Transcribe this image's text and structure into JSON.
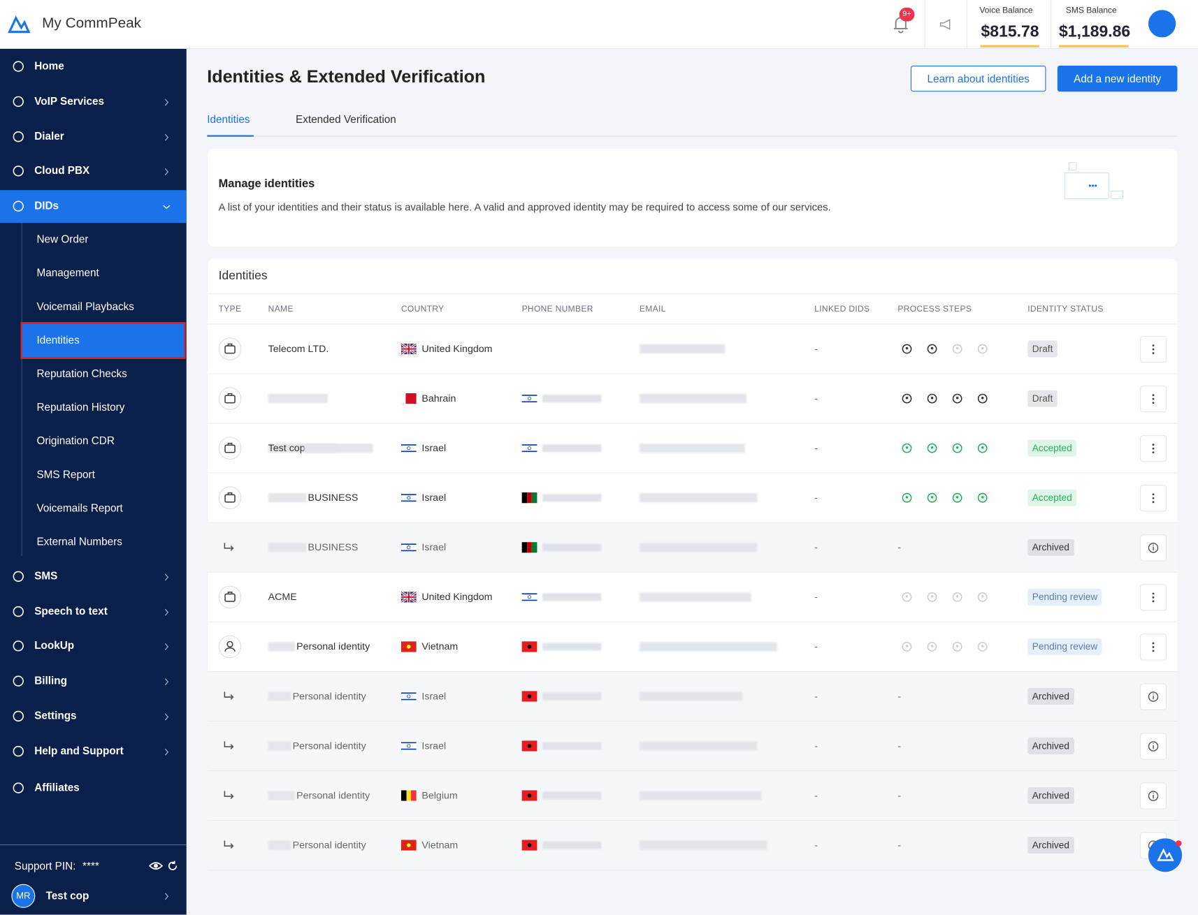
{
  "header": {
    "brand": "My CommPeak",
    "notification_badge": "9+",
    "voice_balance_label": "Voice Balance",
    "voice_balance": "$815.78",
    "sms_balance_label": "SMS Balance",
    "sms_balance": "$1,189.86"
  },
  "sidebar": {
    "items": [
      "Home",
      "VoIP Services",
      "Dialer",
      "Cloud PBX",
      "DIDs"
    ],
    "sub_items": [
      "New Order",
      "Management",
      "Voicemail Playbacks",
      "Identities",
      "Reputation Checks",
      "Reputation History",
      "Origination CDR",
      "SMS Report",
      "Voicemails Report",
      "External Numbers"
    ],
    "items_after": [
      "SMS",
      "Speech to text",
      "LookUp",
      "Billing",
      "Settings",
      "Help and Support",
      "Affiliates"
    ],
    "support_pin_label": "Support PIN:",
    "support_pin": "****",
    "user_initials": "MR",
    "user_name": "Test cop"
  },
  "page": {
    "title": "Identities & Extended Verification",
    "buttons": [
      "Learn about identities",
      "Add a new identity"
    ],
    "tabs": [
      "Identities",
      "Extended Verification"
    ],
    "card_title": "Manage identities",
    "card_text": "A list of your identities and their status is available here. A valid and approved identity may be required to access some of our services.",
    "table_title": "Identities"
  },
  "table": {
    "columns": [
      "TYPE",
      "NAME",
      "COUNTRY",
      "PHONE NUMBER",
      "EMAIL",
      "LINKED DIDS",
      "PROCESS STEPS",
      "IDENTITY STATUS"
    ],
    "rows": [
      {
        "name": "Telecom LTD.",
        "country": "United Kingdom",
        "linked": "-",
        "steps": null,
        "status": "Draft"
      },
      {
        "name": null,
        "country": "Bahrain",
        "linked": "-",
        "steps": null,
        "status": "Draft"
      },
      {
        "name": "Test cop",
        "country": "Israel",
        "linked": "-",
        "steps": null,
        "status": "Accepted"
      },
      {
        "name": "BUSINESS",
        "country": "Israel",
        "linked": "-",
        "steps": null,
        "status": "Accepted"
      },
      {
        "name": "BUSINESS",
        "country": "Israel",
        "linked": "-",
        "steps": "-",
        "status": "Archived"
      },
      {
        "name": "ACME",
        "country": "United Kingdom",
        "linked": "-",
        "steps": null,
        "status": "Pending review"
      },
      {
        "name": "Personal identity",
        "country": "Vietnam",
        "linked": "-",
        "steps": null,
        "status": "Pending review"
      },
      {
        "name": "Personal identity",
        "country": "Israel",
        "linked": "-",
        "steps": "-",
        "status": "Archived"
      },
      {
        "name": "Personal identity",
        "country": "Israel",
        "linked": "-",
        "steps": "-",
        "status": "Archived"
      },
      {
        "name": "Personal identity",
        "country": "Belgium",
        "linked": "-",
        "steps": "-",
        "status": "Archived"
      },
      {
        "name": "Personal identity",
        "country": "Vietnam",
        "linked": "-",
        "steps": "-",
        "status": "Archived"
      }
    ]
  }
}
